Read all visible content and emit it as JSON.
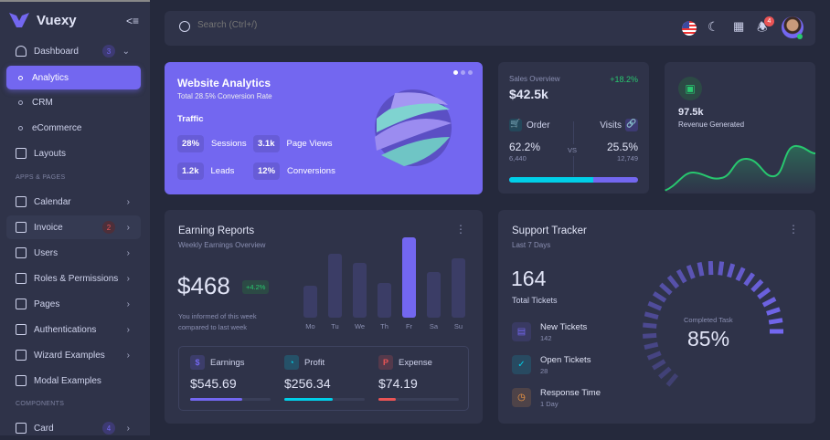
{
  "brand": {
    "name": "Vuexy",
    "primary": "#7367f0"
  },
  "sidebar": {
    "dashboard": {
      "label": "Dashboard",
      "badge": "3"
    },
    "sub": [
      {
        "label": "Analytics",
        "active": true
      },
      {
        "label": "CRM"
      },
      {
        "label": "eCommerce"
      }
    ],
    "layouts": "Layouts",
    "section1": "APPS & PAGES",
    "items": [
      {
        "label": "Calendar",
        "icon": "calendar-icon"
      },
      {
        "label": "Invoice",
        "icon": "invoice-icon",
        "badge": "2"
      },
      {
        "label": "Users",
        "icon": "users-icon"
      },
      {
        "label": "Roles & Permissions",
        "icon": "settings-icon"
      },
      {
        "label": "Pages",
        "icon": "file-icon"
      },
      {
        "label": "Authentications",
        "icon": "lock-icon"
      },
      {
        "label": "Wizard Examples",
        "icon": "wizard-icon"
      },
      {
        "label": "Modal Examples",
        "icon": "square-icon"
      }
    ],
    "section2": "COMPONENTS",
    "card": {
      "label": "Card",
      "badge": "4"
    }
  },
  "navbar": {
    "search_placeholder": "Search (Ctrl+/)",
    "notifications": "4"
  },
  "analytics": {
    "title": "Website Analytics",
    "subtitle": "Total 28.5% Conversion Rate",
    "traffic": "Traffic",
    "stats": [
      {
        "value": "28%",
        "label": "Sessions"
      },
      {
        "value": "3.1k",
        "label": "Page Views"
      },
      {
        "value": "1.2k",
        "label": "Leads"
      },
      {
        "value": "12%",
        "label": "Conversions"
      }
    ]
  },
  "sales": {
    "title": "Sales Overview",
    "change": "+18.2%",
    "value": "$42.5k",
    "order": {
      "label": "Order",
      "pct": "62.2%",
      "count": "6,440"
    },
    "vs": "VS",
    "visits": {
      "label": "Visits",
      "pct": "25.5%",
      "count": "12,749"
    },
    "order_share": 0.65
  },
  "revenue": {
    "value": "97.5k",
    "label": "Revenue Generated"
  },
  "earning": {
    "title": "Earning Reports",
    "subtitle": "Weekly Earnings Overview",
    "amount": "$468",
    "change": "+4.2%",
    "note1": "You informed of this week",
    "note2": "compared to last week",
    "days": [
      "Mo",
      "Tu",
      "We",
      "Th",
      "Fr",
      "Sa",
      "Su"
    ],
    "bars": [
      40,
      80,
      68,
      43,
      100,
      57,
      74
    ],
    "highlight": 4,
    "metrics": [
      {
        "label": "Earnings",
        "value": "$545.69",
        "fill": 0.65,
        "color": "#7367f0",
        "icon": "dollar-icon"
      },
      {
        "label": "Profit",
        "value": "$256.34",
        "fill": 0.6,
        "color": "#00cfe8",
        "icon": "chart-pie-icon"
      },
      {
        "label": "Expense",
        "value": "$74.19",
        "fill": 0.22,
        "color": "#ea5455",
        "icon": "brand-paypal-icon"
      }
    ]
  },
  "support": {
    "title": "Support Tracker",
    "subtitle": "Last 7 Days",
    "total": "164",
    "total_label": "Total Tickets",
    "rows": [
      {
        "label": "New Tickets",
        "value": "142",
        "color": "#7367f0",
        "icon": "ticket-icon"
      },
      {
        "label": "Open Tickets",
        "value": "28",
        "color": "#00cfe8",
        "icon": "circle-check-icon"
      },
      {
        "label": "Response Time",
        "value": "1 Day",
        "color": "#ff9f43",
        "icon": "clock-icon"
      }
    ],
    "gauge_label": "Completed Task",
    "gauge_value": "85%",
    "gauge_pct": 85
  }
}
